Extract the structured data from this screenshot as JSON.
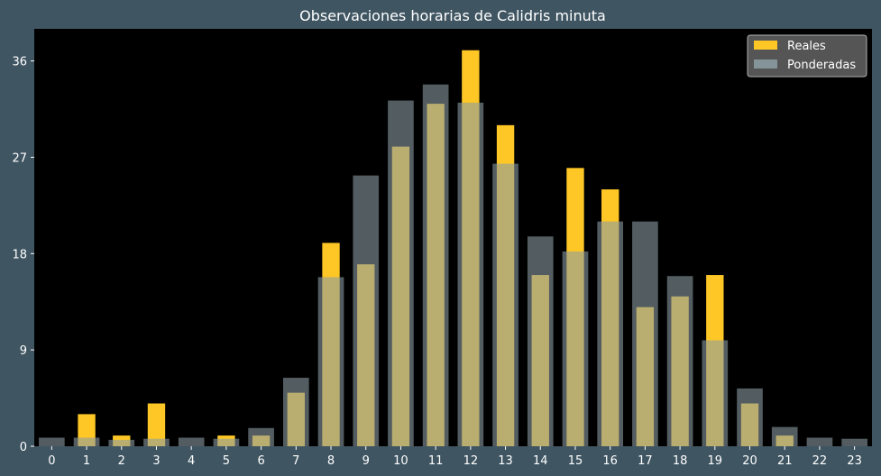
{
  "chart_data": {
    "type": "bar",
    "title": "Observaciones horarias de Calidris minuta",
    "xlabel": "",
    "ylabel": "",
    "categories": [
      "0",
      "1",
      "2",
      "3",
      "4",
      "5",
      "6",
      "7",
      "8",
      "9",
      "10",
      "11",
      "12",
      "13",
      "14",
      "15",
      "16",
      "17",
      "18",
      "19",
      "20",
      "21",
      "22",
      "23"
    ],
    "ylim": [
      0,
      39
    ],
    "yticks": [
      "0",
      "9",
      "18",
      "27",
      "36"
    ],
    "grid": false,
    "legend": "top-right",
    "series": [
      {
        "name": "Reales",
        "color": "#ffc726",
        "values": [
          0,
          3,
          1,
          4,
          0,
          1,
          1,
          5,
          19,
          17,
          28,
          32,
          37,
          30,
          16,
          26,
          24,
          13,
          14,
          16,
          4,
          1,
          0,
          0
        ]
      },
      {
        "name": "Ponderadas",
        "color": "#8a9ba1",
        "values": [
          0.8,
          0.8,
          0.6,
          0.7,
          0.8,
          0.7,
          1.7,
          6.4,
          15.8,
          25.3,
          32.3,
          33.8,
          32.1,
          26.4,
          19.6,
          18.2,
          21.0,
          21.0,
          15.9,
          9.9,
          5.4,
          1.8,
          0.8,
          0.7
        ]
      }
    ]
  }
}
